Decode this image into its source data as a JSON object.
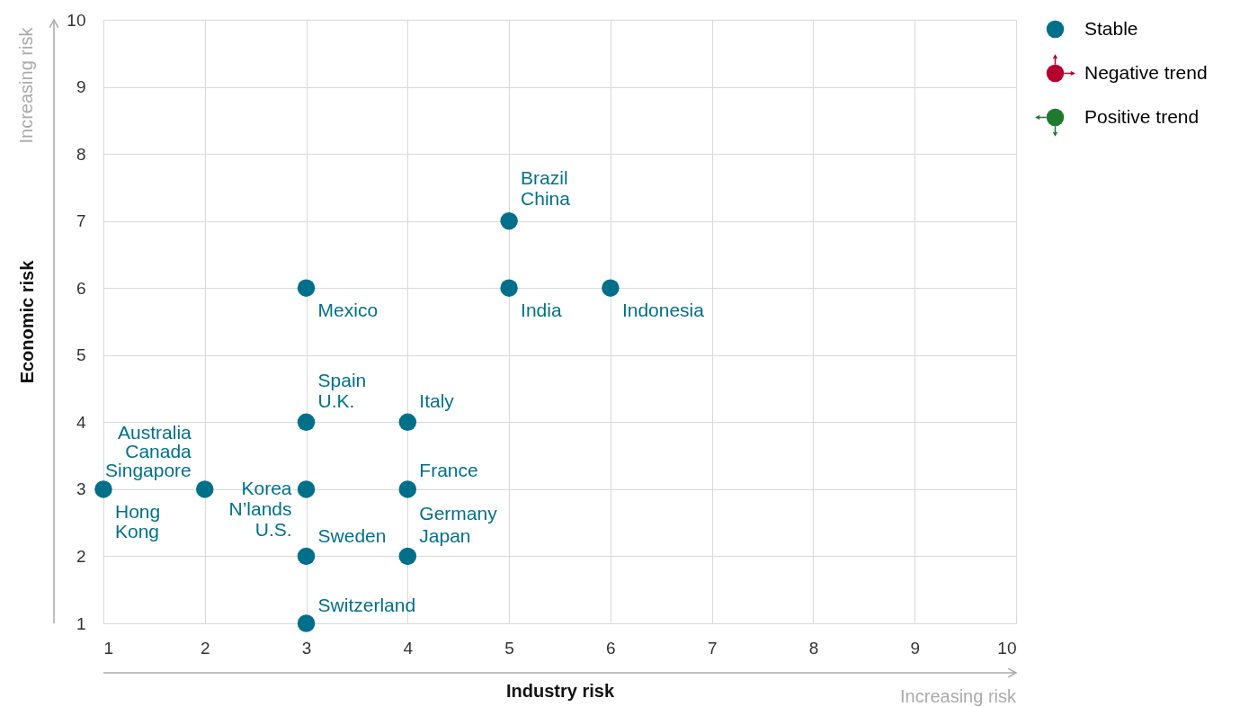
{
  "chart_data": {
    "type": "scatter",
    "xlabel": "Industry risk",
    "ylabel": "Economic risk",
    "x": [
      1,
      2,
      3,
      3,
      3,
      3,
      3,
      4,
      4,
      4,
      5,
      5,
      6
    ],
    "series": [
      {
        "name": "Stable",
        "color": "#00708a",
        "values": [
          3,
          3,
          6,
          4,
          3,
          2,
          1,
          4,
          3,
          2,
          7,
          6,
          6
        ]
      },
      {
        "name": "Negative trend",
        "color": "#b5002f",
        "values": [
          null,
          null,
          null,
          null,
          null,
          null,
          null,
          null,
          null,
          null,
          null,
          null,
          null
        ]
      },
      {
        "name": "Positive trend",
        "color": "#1e7a2e",
        "values": [
          null,
          null,
          null,
          null,
          null,
          null,
          null,
          null,
          null,
          null,
          null,
          null,
          null
        ]
      }
    ],
    "xlim": [
      1,
      10
    ],
    "ylim": [
      1,
      10
    ],
    "xticks": [
      1,
      2,
      3,
      4,
      5,
      6,
      7,
      8,
      9,
      10
    ],
    "yticks": [
      1,
      2,
      3,
      4,
      5,
      6,
      7,
      8,
      9,
      10
    ],
    "grid": true,
    "legend": "top right",
    "marker": "circle",
    "annotations": [
      {
        "text": "Brazil",
        "x": 5,
        "y": 7
      },
      {
        "text": "China",
        "x": 5,
        "y": 7
      },
      {
        "text": "Mexico",
        "x": 3,
        "y": 6
      },
      {
        "text": "India",
        "x": 5,
        "y": 6
      },
      {
        "text": "Indonesia",
        "x": 6,
        "y": 6
      },
      {
        "text": "Spain",
        "x": 3,
        "y": 4
      },
      {
        "text": "U.K.",
        "x": 3,
        "y": 4
      },
      {
        "text": "Italy",
        "x": 4,
        "y": 4
      },
      {
        "text": "Australia",
        "x": 2,
        "y": 3
      },
      {
        "text": "Canada",
        "x": 2,
        "y": 3
      },
      {
        "text": "Singapore",
        "x": 2,
        "y": 3
      },
      {
        "text": "France",
        "x": 4,
        "y": 3
      },
      {
        "text": "Korea",
        "x": 3,
        "y": 3
      },
      {
        "text": "N’lands",
        "x": 3,
        "y": 3
      },
      {
        "text": "U.S.",
        "x": 3,
        "y": 3
      },
      {
        "text": "Hong Kong",
        "x": 1,
        "y": 3
      },
      {
        "text": "Germany",
        "x": 4,
        "y": 2
      },
      {
        "text": "Japan",
        "x": 4,
        "y": 2
      },
      {
        "text": "Sweden",
        "x": 3,
        "y": 2
      },
      {
        "text": "Switzerland",
        "x": 3,
        "y": 1
      },
      "Increasing risk",
      "Increasing risk"
    ]
  }
}
